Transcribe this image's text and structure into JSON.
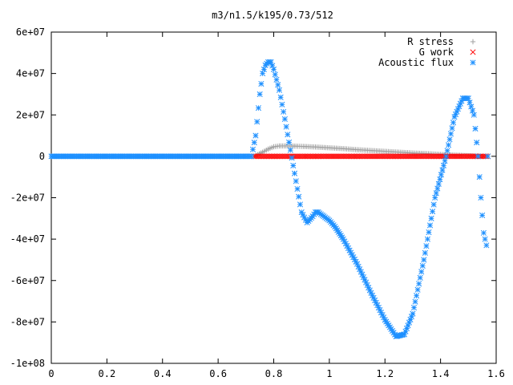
{
  "chart_data": {
    "type": "scatter",
    "title": "m3/n1.5/k195/0.73/512",
    "xlabel": "",
    "ylabel": "",
    "xlim": [
      0,
      1.6
    ],
    "ylim": [
      -100000000,
      60000000
    ],
    "x_ticks": [
      0,
      0.2,
      0.4,
      0.6,
      0.8,
      1,
      1.2,
      1.4,
      1.6
    ],
    "x_tick_labels": [
      "0",
      "0.2",
      "0.4",
      "0.6",
      "0.8",
      "1",
      "1.2",
      "1.4",
      "1.6"
    ],
    "y_ticks": [
      -100000000,
      -80000000,
      -60000000,
      -40000000,
      -20000000,
      0,
      20000000,
      40000000,
      60000000
    ],
    "y_tick_labels": [
      "-1e+08",
      "-8e+07",
      "-6e+07",
      "-4e+07",
      "-2e+07",
      "0",
      "2e+07",
      "4e+07",
      "6e+07"
    ],
    "grid": false,
    "legend_position": "top-right",
    "series": [
      {
        "name": "R stress",
        "marker": "plus",
        "color": "#a0a0a0",
        "x": [
          0.73,
          0.76,
          0.78,
          0.8,
          0.82,
          0.85,
          0.88,
          0.9,
          0.95,
          1.0,
          1.05,
          1.1,
          1.15,
          1.2,
          1.25,
          1.3,
          1.35,
          1.4,
          1.45,
          1.5,
          1.55
        ],
        "y": [
          0,
          2000000,
          3500000,
          4600000,
          5000000,
          5000000,
          4900000,
          4800000,
          4500000,
          4100000,
          3700000,
          3200000,
          2800000,
          2400000,
          2000000,
          1600000,
          1300000,
          900000,
          600000,
          300000,
          0
        ]
      },
      {
        "name": "G work",
        "marker": "cross",
        "color": "#ff0000",
        "x": [
          0.73,
          0.8,
          0.9,
          1.0,
          1.1,
          1.2,
          1.3,
          1.4,
          1.5,
          1.57
        ],
        "y": [
          0,
          0,
          0,
          0,
          0,
          0,
          0,
          0,
          0,
          0
        ]
      },
      {
        "name": "Acoustic flux",
        "marker": "star",
        "color": "#1e90ff",
        "x": [
          0.0,
          0.1,
          0.2,
          0.3,
          0.4,
          0.5,
          0.6,
          0.7,
          0.72,
          0.735,
          0.75,
          0.76,
          0.77,
          0.78,
          0.79,
          0.8,
          0.82,
          0.84,
          0.86,
          0.88,
          0.9,
          0.92,
          0.94,
          0.95,
          0.96,
          0.98,
          1.0,
          1.02,
          1.05,
          1.1,
          1.15,
          1.2,
          1.24,
          1.27,
          1.3,
          1.34,
          1.38,
          1.42,
          1.45,
          1.48,
          1.5,
          1.52,
          1.535,
          1.545,
          1.555,
          1.565,
          1.57
        ],
        "y": [
          0,
          0,
          0,
          0,
          0,
          0,
          0,
          0,
          0,
          10000000,
          30000000,
          40000000,
          44000000,
          45500000,
          45500000,
          42000000,
          32000000,
          18000000,
          3000000,
          -12000000,
          -27000000,
          -32000000,
          -29000000,
          -27000000,
          -27000000,
          -29000000,
          -31000000,
          -34000000,
          -40000000,
          -52000000,
          -66000000,
          -79000000,
          -87000000,
          -86000000,
          -76000000,
          -50000000,
          -20000000,
          0,
          19000000,
          28000000,
          28000000,
          20000000,
          0,
          -20000000,
          -37000000,
          -43000000,
          0
        ]
      }
    ]
  }
}
